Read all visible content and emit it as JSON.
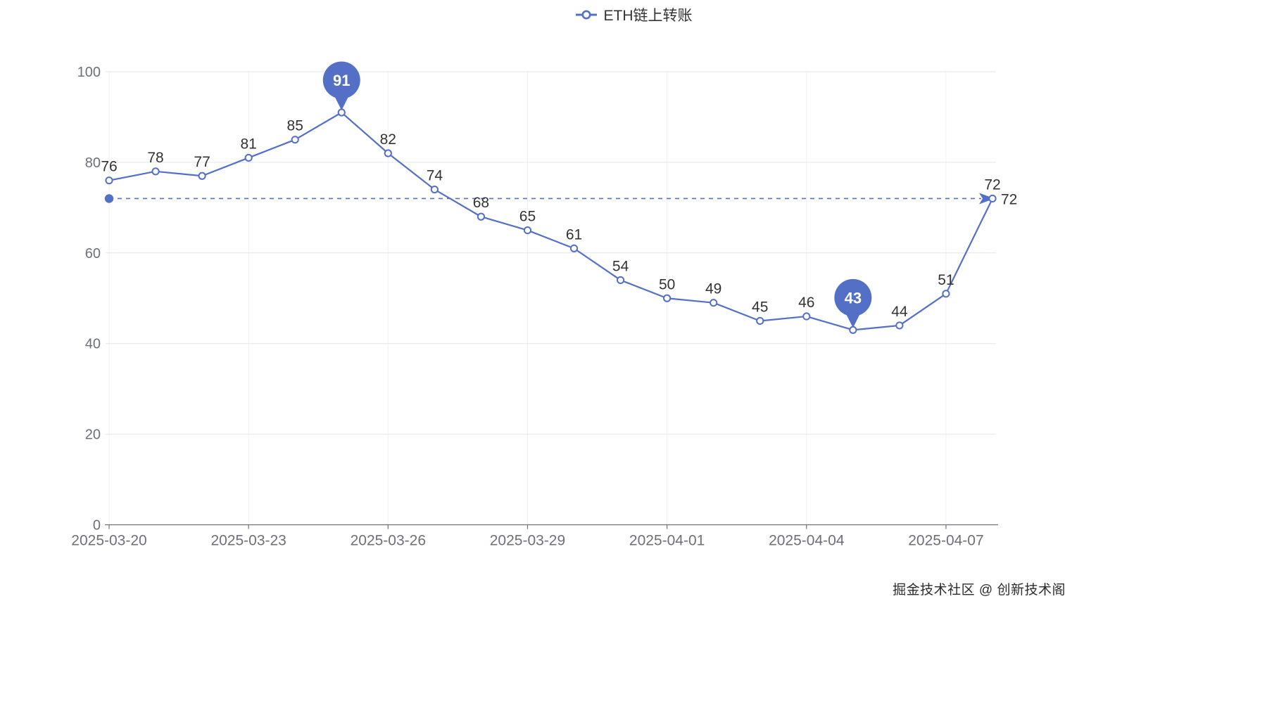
{
  "legend": {
    "label": "ETH链上转账"
  },
  "watermark": "掘金技术社区 @ 创新技术阁",
  "chart_data": {
    "type": "line",
    "title": "ETH链上转账",
    "x": [
      "2025-03-20",
      "2025-03-21",
      "2025-03-22",
      "2025-03-23",
      "2025-03-24",
      "2025-03-25",
      "2025-03-26",
      "2025-03-27",
      "2025-03-28",
      "2025-03-29",
      "2025-03-30",
      "2025-03-31",
      "2025-04-01",
      "2025-04-02",
      "2025-04-03",
      "2025-04-04",
      "2025-04-05",
      "2025-04-06",
      "2025-04-07",
      "2025-04-08"
    ],
    "values": [
      76,
      78,
      77,
      81,
      85,
      91,
      82,
      74,
      68,
      65,
      61,
      54,
      50,
      49,
      45,
      46,
      43,
      44,
      51,
      72
    ],
    "xlabel": "",
    "ylabel": "",
    "ylim": [
      0,
      100
    ],
    "yticks": [
      0,
      20,
      40,
      60,
      80,
      100
    ],
    "xtick_labels": [
      "2025-03-20",
      "2025-03-23",
      "2025-03-26",
      "2025-03-29",
      "2025-04-01",
      "2025-04-04",
      "2025-04-07"
    ],
    "grid": true,
    "legend_position": "top-center",
    "markpoints": [
      {
        "type": "max",
        "value": 91
      },
      {
        "type": "min",
        "value": 43
      }
    ],
    "markline": {
      "type": "latest-value",
      "value": 72,
      "style": "dashed-arrow"
    },
    "colors": {
      "line": "#5470c6",
      "point_fill": "#ffffff",
      "pin": "#5470c6",
      "pin_text": "#ffffff",
      "data_label": "#333333",
      "axis_label": "#6E7079",
      "axis_line": "#6E7079",
      "grid_line": "#E0E6F1",
      "background": "#ffffff"
    }
  }
}
